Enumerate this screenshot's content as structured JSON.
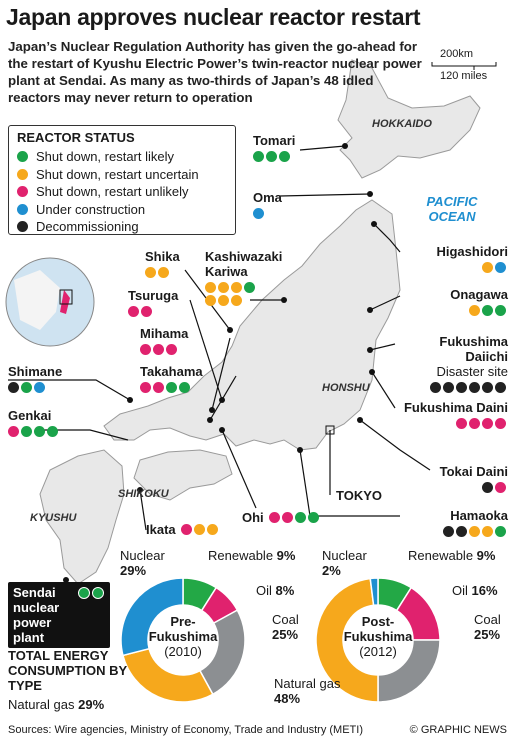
{
  "title": "Japan approves nuclear reactor restart",
  "intro": "Japan’s Nuclear Regulation Authority has given the go-ahead for the restart of Kyushu Electric Power’s twin-reactor nuclear power plant at Sendai. As many as two-thirds of Japan’s 48 idled reactors may never return to operation",
  "scale": [
    "200km",
    "120 miles"
  ],
  "legend": {
    "title": "REACTOR STATUS",
    "items": [
      {
        "label": "Shut down, restart likely",
        "color": "#1aa34a"
      },
      {
        "label": "Shut down, restart uncertain",
        "color": "#f6a81c"
      },
      {
        "label": "Shut down, restart unlikely",
        "color": "#e0226e"
      },
      {
        "label": "Under construction",
        "color": "#1f8fd0"
      },
      {
        "label": "Decommissioning",
        "color": "#222222"
      }
    ]
  },
  "regions": [
    "HOKKAIDO",
    "HONSHU",
    "SHIKOKU",
    "KYUSHU"
  ],
  "ocean": "PACIFIC OCEAN",
  "city": "TOKYO",
  "plants": [
    {
      "name": "Tomari",
      "reactors": [
        "#1aa34a",
        "#1aa34a",
        "#1aa34a"
      ]
    },
    {
      "name": "Oma",
      "reactors": [
        "#1f8fd0"
      ]
    },
    {
      "name": "Higashidori",
      "reactors": [
        "#f6a81c",
        "#1f8fd0"
      ]
    },
    {
      "name": "Onagawa",
      "reactors": [
        "#f6a81c",
        "#1aa34a",
        "#1aa34a"
      ]
    },
    {
      "name": "Fukushima Daiichi",
      "note": "Disaster site",
      "reactors": [
        "#222222",
        "#222222",
        "#222222",
        "#222222",
        "#222222",
        "#222222"
      ]
    },
    {
      "name": "Fukushima Daini",
      "reactors": [
        "#e0226e",
        "#e0226e",
        "#e0226e",
        "#e0226e"
      ]
    },
    {
      "name": "Tokai Daini",
      "reactors": [
        "#222222",
        "#e0226e"
      ]
    },
    {
      "name": "Hamaoka",
      "reactors": [
        "#222222",
        "#222222",
        "#f6a81c",
        "#f6a81c",
        "#1aa34a"
      ]
    },
    {
      "name": "Ohi",
      "reactors": [
        "#e0226e",
        "#e0226e",
        "#1aa34a",
        "#1aa34a"
      ]
    },
    {
      "name": "Ikata",
      "reactors": [
        "#e0226e",
        "#f6a81c",
        "#f6a81c"
      ]
    },
    {
      "name": "Genkai",
      "reactors": [
        "#e0226e",
        "#1aa34a",
        "#1aa34a",
        "#1aa34a"
      ]
    },
    {
      "name": "Shimane",
      "reactors": [
        "#222222",
        "#1aa34a",
        "#1f8fd0"
      ]
    },
    {
      "name": "Takahama",
      "reactors": [
        "#e0226e",
        "#e0226e",
        "#1aa34a",
        "#1aa34a"
      ]
    },
    {
      "name": "Mihama",
      "reactors": [
        "#e0226e",
        "#e0226e",
        "#e0226e"
      ]
    },
    {
      "name": "Tsuruga",
      "reactors": [
        "#e0226e",
        "#e0226e"
      ]
    },
    {
      "name": "Shika",
      "reactors": [
        "#f6a81c",
        "#f6a81c"
      ]
    },
    {
      "name": "Kashiwazaki Kariwa",
      "reactors": [
        "#f6a81c",
        "#f6a81c",
        "#f6a81c",
        "#1aa34a",
        "#f6a81c",
        "#f6a81c",
        "#f6a81c"
      ]
    }
  ],
  "featured_plant": {
    "name": "Sendai nuclear power plant",
    "reactors": [
      "#1aa34a",
      "#1aa34a"
    ]
  },
  "charts_heading": "TOTAL ENERGY CONSUMPTION BY TYPE",
  "chart_data": [
    {
      "type": "pie",
      "title": "Pre-Fukushima",
      "subtitle": "(2010)",
      "categories": [
        "Renewable",
        "Oil",
        "Coal",
        "Natural gas",
        "Nuclear"
      ],
      "values": [
        9,
        8,
        25,
        29,
        29
      ],
      "value_labels": [
        "9%",
        "8%",
        "25%",
        "29%",
        "29%"
      ],
      "colors": [
        "#23a846",
        "#e0226e",
        "#8c8f92",
        "#f6a81c",
        "#1f8fd0"
      ]
    },
    {
      "type": "pie",
      "title": "Post-Fukushima",
      "subtitle": "(2012)",
      "categories": [
        "Renewable",
        "Oil",
        "Coal",
        "Natural gas",
        "Nuclear"
      ],
      "values": [
        9,
        16,
        25,
        48,
        2
      ],
      "value_labels": [
        "9%",
        "16%",
        "25%",
        "48%",
        "2%"
      ],
      "colors": [
        "#23a846",
        "#e0226e",
        "#8c8f92",
        "#f6a81c",
        "#1f8fd0"
      ]
    }
  ],
  "sources": "Sources: Wire agencies, Ministry of Economy, Trade and Industry (METI)",
  "credit": "© GRAPHIC NEWS"
}
